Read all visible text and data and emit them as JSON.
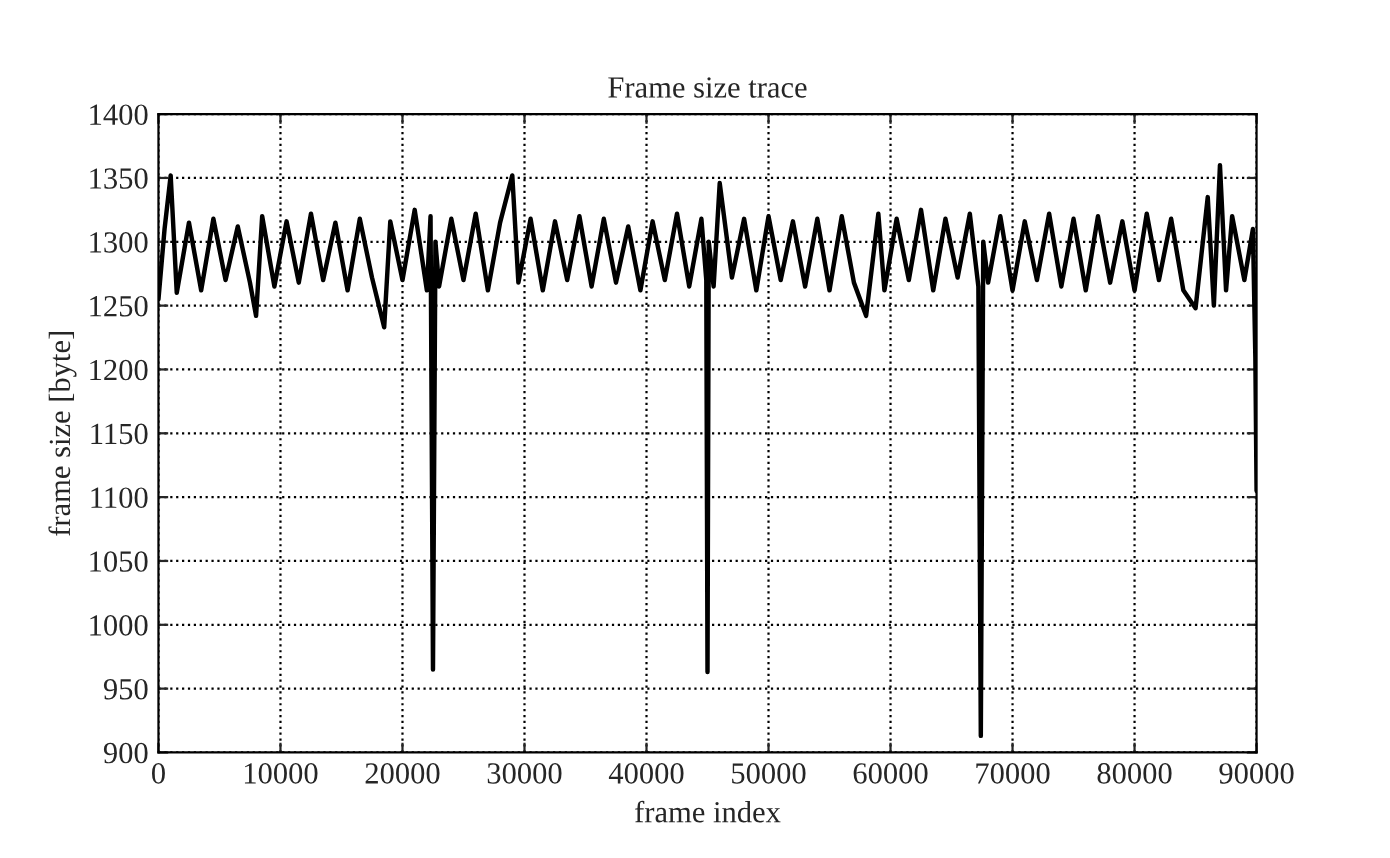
{
  "chart_data": {
    "type": "line",
    "title": "Frame size trace",
    "xlabel": "frame index",
    "ylabel": "frame size [byte]",
    "x": [
      0,
      500,
      1000,
      1500,
      2500,
      3500,
      4500,
      5500,
      6500,
      7500,
      8000,
      8500,
      9500,
      10500,
      11500,
      12500,
      13500,
      14500,
      15500,
      16500,
      17500,
      18500,
      19000,
      20000,
      21000,
      22000,
      22300,
      22500,
      22700,
      23000,
      24000,
      25000,
      26000,
      27000,
      28000,
      29000,
      29500,
      30500,
      31500,
      32500,
      33500,
      34500,
      35500,
      36500,
      37500,
      38500,
      39500,
      40500,
      41500,
      42500,
      43500,
      44500,
      44900,
      45000,
      45100,
      45500,
      46000,
      47000,
      48000,
      49000,
      50000,
      51000,
      52000,
      53000,
      54000,
      55000,
      56000,
      57000,
      58000,
      59000,
      59500,
      60500,
      61500,
      62500,
      63500,
      64500,
      65500,
      66500,
      67200,
      67400,
      67600,
      68000,
      69000,
      70000,
      71000,
      72000,
      73000,
      74000,
      75000,
      76000,
      77000,
      78000,
      79000,
      80000,
      81000,
      82000,
      83000,
      84000,
      85000,
      86000,
      86500,
      87000,
      87500,
      88000,
      89000,
      89700,
      89900,
      90000
    ],
    "series": [
      {
        "color": "#000000",
        "values": [
          1255,
          1310,
          1352,
          1260,
          1315,
          1262,
          1318,
          1270,
          1312,
          1268,
          1242,
          1320,
          1265,
          1316,
          1268,
          1322,
          1270,
          1315,
          1262,
          1318,
          1272,
          1233,
          1316,
          1270,
          1325,
          1262,
          1320,
          965,
          1300,
          1265,
          1318,
          1270,
          1322,
          1262,
          1315,
          1352,
          1268,
          1318,
          1262,
          1316,
          1270,
          1320,
          1265,
          1318,
          1268,
          1312,
          1262,
          1316,
          1270,
          1322,
          1265,
          1318,
          1270,
          963,
          1300,
          1265,
          1346,
          1272,
          1318,
          1262,
          1320,
          1270,
          1316,
          1265,
          1318,
          1262,
          1320,
          1268,
          1242,
          1322,
          1262,
          1318,
          1270,
          1325,
          1262,
          1318,
          1272,
          1322,
          1265,
          913,
          1300,
          1268,
          1320,
          1262,
          1316,
          1270,
          1322,
          1265,
          1318,
          1262,
          1320,
          1268,
          1316,
          1262,
          1322,
          1270,
          1318,
          1262,
          1248,
          1335,
          1250,
          1360,
          1262,
          1320,
          1270,
          1310,
          1210,
          1105
        ]
      }
    ],
    "xlim": [
      0,
      90000
    ],
    "ylim": [
      900,
      1400
    ],
    "xticks": [
      0,
      10000,
      20000,
      30000,
      40000,
      50000,
      60000,
      70000,
      80000,
      90000
    ],
    "yticks": [
      900,
      950,
      1000,
      1050,
      1100,
      1150,
      1200,
      1250,
      1300,
      1350,
      1400
    ],
    "grid": true,
    "line_style": "solid",
    "marker": "none"
  }
}
